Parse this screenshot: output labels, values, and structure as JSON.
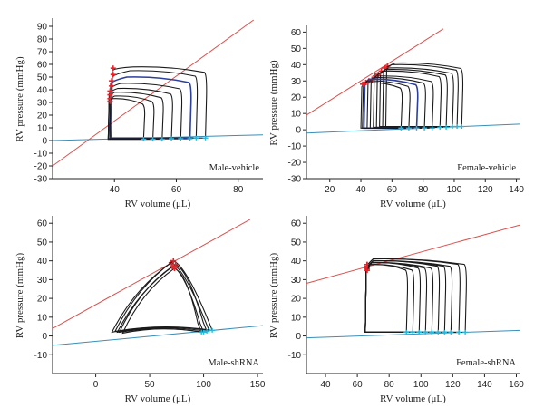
{
  "chart_data": [
    {
      "type": "line",
      "annotation": "Male-vehicle",
      "xlabel": "RV volume (μL)",
      "ylabel": "RV pressure (mmHg)",
      "xlim": [
        20,
        88
      ],
      "ylim": [
        -30,
        95
      ],
      "xticks": [
        40,
        60,
        80
      ],
      "yticks": [
        -30,
        -20,
        -10,
        0,
        10,
        20,
        30,
        40,
        50,
        60,
        70,
        80,
        90
      ],
      "colors": {
        "loops": "#1a1a1a",
        "highlight": "#2b3f9e",
        "espvr": "#d9534f",
        "edpvr": "#3a8fb7",
        "endpoints": "#e8232a",
        "ed_points": "#29b6d9"
      },
      "espvr": [
        [
          20,
          -20
        ],
        [
          85,
          95
        ]
      ],
      "edpvr": [
        [
          20,
          0
        ],
        [
          88,
          4.5
        ]
      ],
      "loops": [
        {
          "vmin": 39,
          "vmax": 70,
          "pes": 57,
          "vstart": 46,
          "pmax": 58,
          "ped": 2,
          "highlight": false
        },
        {
          "vmin": 39,
          "vmax": 67,
          "pes": 52,
          "vstart": 45,
          "pmax": 55,
          "ped": 2,
          "highlight": false
        },
        {
          "vmin": 38.5,
          "vmax": 65,
          "pes": 47,
          "vstart": 44,
          "pmax": 50,
          "ped": 1.5,
          "highlight": true
        },
        {
          "vmin": 38.5,
          "vmax": 62,
          "pes": 43,
          "vstart": 42,
          "pmax": 45,
          "ped": 1.5,
          "highlight": false
        },
        {
          "vmin": 38,
          "vmax": 59,
          "pes": 39,
          "vstart": 41,
          "pmax": 41,
          "ped": 1.5,
          "highlight": false
        },
        {
          "vmin": 38,
          "vmax": 56,
          "pes": 36,
          "vstart": 40,
          "pmax": 38,
          "ped": 1,
          "highlight": false
        },
        {
          "vmin": 38,
          "vmax": 53,
          "pes": 33,
          "vstart": 40,
          "pmax": 35,
          "ped": 1,
          "highlight": false
        },
        {
          "vmin": 38,
          "vmax": 50,
          "pes": 31,
          "vstart": 39,
          "pmax": 33,
          "ped": 1,
          "highlight": false
        }
      ]
    },
    {
      "type": "line",
      "annotation": "Female-vehicle",
      "xlabel": "RV volume (μL)",
      "ylabel": "RV pressure (mmHg)",
      "xlim": [
        5,
        142
      ],
      "ylim": [
        -30,
        63
      ],
      "xticks": [
        20,
        40,
        60,
        80,
        100,
        120,
        140
      ],
      "yticks": [
        -30,
        -20,
        -10,
        0,
        10,
        20,
        30,
        40,
        50,
        60
      ],
      "colors": {
        "loops": "#1a1a1a",
        "highlight": "#2b3f9e",
        "espvr": "#d9534f",
        "edpvr": "#3a8fb7",
        "endpoints": "#e8232a",
        "ed_points": "#29b6d9"
      },
      "espvr": [
        [
          5,
          9
        ],
        [
          93,
          62
        ]
      ],
      "edpvr": [
        [
          5,
          -2
        ],
        [
          142,
          3.5
        ]
      ],
      "loops": [
        {
          "vmin": 56,
          "vmax": 106,
          "pes": 39,
          "vstart": 62,
          "pmax": 41,
          "ped": 2,
          "highlight": false
        },
        {
          "vmin": 54,
          "vmax": 103,
          "pes": 38,
          "vstart": 60,
          "pmax": 40,
          "ped": 2,
          "highlight": false
        },
        {
          "vmin": 52,
          "vmax": 100,
          "pes": 36,
          "vstart": 58,
          "pmax": 38,
          "ped": 2,
          "highlight": false
        },
        {
          "vmin": 50,
          "vmax": 96,
          "pes": 34,
          "vstart": 56,
          "pmax": 37,
          "ped": 1.5,
          "highlight": false
        },
        {
          "vmin": 48,
          "vmax": 92,
          "pes": 33,
          "vstart": 54,
          "pmax": 36,
          "ped": 1.5,
          "highlight": false
        },
        {
          "vmin": 46,
          "vmax": 87,
          "pes": 31,
          "vstart": 50,
          "pmax": 33,
          "ped": 1,
          "highlight": false
        },
        {
          "vmin": 44,
          "vmax": 82,
          "pes": 30,
          "vstart": 48,
          "pmax": 32,
          "ped": 1,
          "highlight": false
        },
        {
          "vmin": 42,
          "vmax": 77,
          "pes": 29,
          "vstart": 45,
          "pmax": 31,
          "ped": 1,
          "highlight": true
        },
        {
          "vmin": 41,
          "vmax": 72,
          "pes": 28,
          "vstart": 44,
          "pmax": 30,
          "ped": 1,
          "highlight": false
        },
        {
          "vmin": 40,
          "vmax": 67,
          "pes": 28,
          "vstart": 43,
          "pmax": 29,
          "ped": 1,
          "highlight": false
        }
      ]
    },
    {
      "type": "line",
      "annotation": "Male-shRNA",
      "xlabel": "RV volume (μL)",
      "ylabel": "RV pressure (mmHg)",
      "xlim": [
        -40,
        155
      ],
      "ylim": [
        -20,
        63
      ],
      "xticks": [
        0,
        50,
        100,
        150
      ],
      "yticks": [
        -10,
        0,
        10,
        20,
        30,
        40,
        50,
        60
      ],
      "colors": {
        "loops": "#1a1a1a",
        "highlight": "#2b3f9e",
        "espvr": "#d9534f",
        "edpvr": "#3a8fb7",
        "endpoints": "#e8232a",
        "ed_points": "#29b6d9"
      },
      "espvr": [
        [
          -40,
          4
        ],
        [
          143,
          62
        ]
      ],
      "edpvr": [
        [
          -40,
          -5
        ],
        [
          155,
          5.5
        ]
      ],
      "triangles": [
        {
          "v_es": 70,
          "p_es": 39,
          "v_ed": 105,
          "p_ed": 3,
          "v_left": 15,
          "p_left": 2
        },
        {
          "v_es": 72,
          "p_es": 40,
          "v_ed": 108,
          "p_ed": 3,
          "v_left": 18,
          "p_left": 2.5
        },
        {
          "v_es": 74,
          "p_es": 38,
          "v_ed": 103,
          "p_ed": 2.5,
          "v_left": 20,
          "p_left": 2
        },
        {
          "v_es": 71,
          "p_es": 37,
          "v_ed": 100,
          "p_ed": 2,
          "v_left": 22,
          "p_left": 2
        },
        {
          "v_es": 73,
          "p_es": 36,
          "v_ed": 98,
          "p_ed": 2,
          "v_left": 25,
          "p_left": 1.5
        }
      ]
    },
    {
      "type": "line",
      "annotation": "Female-shRNA",
      "xlabel": "RV volume (μL)",
      "ylabel": "RV pressure (mmHg)",
      "xlim": [
        28,
        162
      ],
      "ylim": [
        -20,
        63
      ],
      "xticks": [
        40,
        60,
        80,
        100,
        120,
        140,
        160
      ],
      "yticks": [
        -10,
        0,
        10,
        20,
        30,
        40,
        50,
        60
      ],
      "colors": {
        "loops": "#1a1a1a",
        "highlight": "#2b3f9e",
        "espvr": "#d9534f",
        "edpvr": "#3a8fb7",
        "endpoints": "#e8232a",
        "ed_points": "#29b6d9"
      },
      "espvr": [
        [
          28,
          28
        ],
        [
          162,
          59
        ]
      ],
      "edpvr": [
        [
          28,
          -1
        ],
        [
          162,
          3
        ]
      ],
      "loops": [
        {
          "vmin": 65,
          "vmax": 129,
          "pes": 38,
          "vstart": 70,
          "pmax": 41,
          "ped": 2,
          "highlight": false
        },
        {
          "vmin": 65,
          "vmax": 125,
          "pes": 38,
          "vstart": 70,
          "pmax": 41,
          "ped": 2,
          "highlight": false
        },
        {
          "vmin": 65,
          "vmax": 120,
          "pes": 37,
          "vstart": 70,
          "pmax": 40,
          "ped": 2,
          "highlight": false
        },
        {
          "vmin": 65,
          "vmax": 116,
          "pes": 37,
          "vstart": 70,
          "pmax": 40,
          "ped": 2,
          "highlight": false
        },
        {
          "vmin": 65,
          "vmax": 112,
          "pes": 37,
          "vstart": 70,
          "pmax": 40,
          "ped": 2,
          "highlight": false
        },
        {
          "vmin": 65,
          "vmax": 108,
          "pes": 36,
          "vstart": 69,
          "pmax": 39,
          "ped": 2,
          "highlight": false
        },
        {
          "vmin": 65,
          "vmax": 104,
          "pes": 36,
          "vstart": 69,
          "pmax": 39,
          "ped": 2,
          "highlight": false
        },
        {
          "vmin": 65,
          "vmax": 100,
          "pes": 36,
          "vstart": 69,
          "pmax": 39,
          "ped": 2,
          "highlight": false
        },
        {
          "vmin": 65,
          "vmax": 96,
          "pes": 35,
          "vstart": 68,
          "pmax": 38,
          "ped": 2,
          "highlight": false
        },
        {
          "vmin": 65,
          "vmax": 92,
          "pes": 35,
          "vstart": 68,
          "pmax": 38,
          "ped": 2,
          "highlight": false
        }
      ]
    }
  ]
}
